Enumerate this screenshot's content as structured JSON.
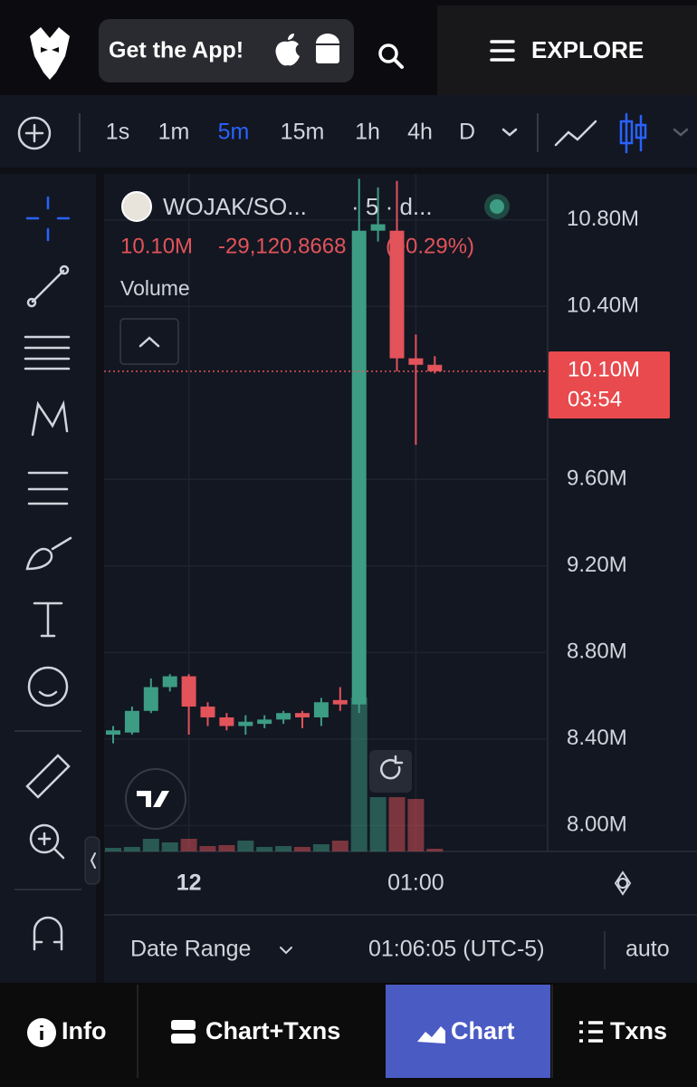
{
  "header": {
    "cta": "Get the App!",
    "menu": "EXPLORE"
  },
  "toolbar": {
    "intervals": [
      "1s",
      "1m",
      "5m",
      "15m",
      "1h",
      "4h",
      "D"
    ],
    "active_interval": 2
  },
  "chart_data": {
    "type": "candlestick",
    "symbol": "WOJAK/SO...",
    "interval_info": "· 5 · d...",
    "legend": {
      "price": "10.10M",
      "change": "-29,120.8668",
      "change_pct": "(−0.29%)"
    },
    "volume_label": "Volume",
    "up_color": "#3d9c84",
    "down_color": "#e2535a",
    "open": [
      8420000,
      8430000,
      8530000,
      8640000,
      8690000,
      8550000,
      8500000,
      8460000,
      8470000,
      8490000,
      8520000,
      8500000,
      8580000,
      8560000,
      10750000,
      10750000,
      10160000,
      10130000
    ],
    "high": [
      8460000,
      8550000,
      8680000,
      8700000,
      8700000,
      8570000,
      8520000,
      8510000,
      8510000,
      8530000,
      8530000,
      8590000,
      8640000,
      10990000,
      10950000,
      10980000,
      10270000,
      10170000
    ],
    "low": [
      8380000,
      8420000,
      8520000,
      8620000,
      8420000,
      8460000,
      8440000,
      8420000,
      8450000,
      8470000,
      8450000,
      8460000,
      8530000,
      8520000,
      10700000,
      10100000,
      9760000,
      10090000
    ],
    "close": [
      8440000,
      8530000,
      8640000,
      8690000,
      8550000,
      8500000,
      8460000,
      8480000,
      8490000,
      8520000,
      8500000,
      8570000,
      8560000,
      10750000,
      10780000,
      10160000,
      10130000,
      10100000
    ],
    "volume": [
      4,
      5,
      14,
      10,
      14,
      6,
      7,
      12,
      5,
      6,
      5,
      8,
      12,
      170,
      60,
      60,
      58,
      3
    ],
    "ylim": [
      7880000,
      11000000
    ],
    "yticks": [
      {
        "value": 8000000,
        "label": "8.00M"
      },
      {
        "value": 8400000,
        "label": "8.40M"
      },
      {
        "value": 8800000,
        "label": "8.80M"
      },
      {
        "value": 9200000,
        "label": "9.20M"
      },
      {
        "value": 9600000,
        "label": "9.60M"
      },
      {
        "value": 10400000,
        "label": "10.40M"
      },
      {
        "value": 10800000,
        "label": "10.80M"
      }
    ],
    "xticks": [
      {
        "value": 4,
        "label": "12"
      },
      {
        "value": 16,
        "label": "01:00"
      }
    ],
    "last_price": {
      "value": 10100000,
      "label": "10.10M"
    },
    "countdown": "03:54",
    "grid": true
  },
  "footer": {
    "date_range": "Date Range",
    "time": "01:06:05 (UTC-5)",
    "scale": "auto"
  },
  "nav": {
    "tabs": [
      "Info",
      "Chart+Txns",
      "Chart",
      "Txns"
    ],
    "active_tab": 2
  }
}
